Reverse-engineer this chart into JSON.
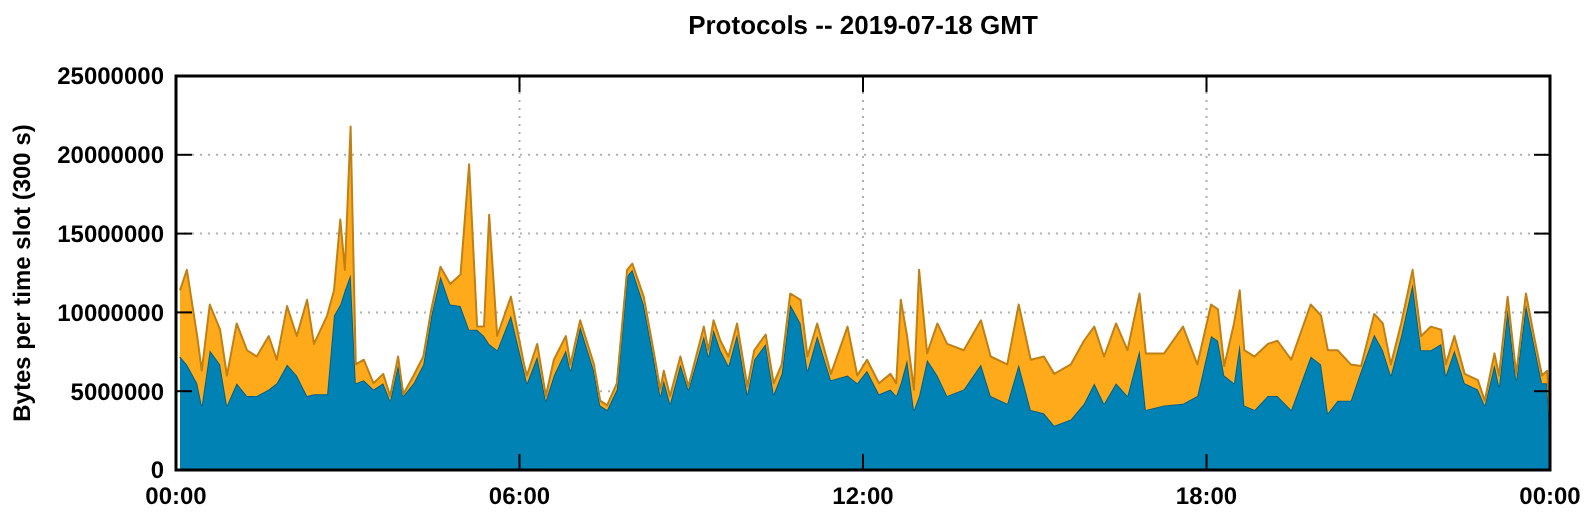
{
  "chart_data": {
    "type": "area",
    "stacked": true,
    "title": "Protocols -- 2019-07-18 GMT",
    "ylabel": "Bytes per time slot (300 s)",
    "x": [
      0.07,
      0.19,
      0.37,
      0.45,
      0.59,
      0.77,
      0.89,
      1.06,
      1.24,
      1.41,
      1.62,
      1.76,
      1.94,
      2.11,
      2.29,
      2.41,
      2.64,
      2.76,
      2.87,
      2.95,
      3.05,
      3.14,
      3.28,
      3.45,
      3.62,
      3.74,
      3.88,
      3.97,
      4.15,
      4.32,
      4.46,
      4.62,
      4.79,
      4.97,
      5.12,
      5.26,
      5.38,
      5.47,
      5.61,
      5.85,
      6.08,
      6.13,
      6.31,
      6.46,
      6.6,
      6.81,
      6.89,
      7.06,
      7.3,
      7.41,
      7.53,
      7.7,
      7.88,
      7.97,
      8.17,
      8.34,
      8.46,
      8.52,
      8.63,
      8.81,
      8.95,
      9.22,
      9.3,
      9.39,
      9.51,
      9.65,
      9.8,
      9.98,
      10.1,
      10.3,
      10.44,
      10.58,
      10.73,
      10.91,
      11.03,
      11.2,
      11.44,
      11.73,
      11.9,
      12.07,
      12.28,
      12.48,
      12.58,
      12.66,
      12.77,
      12.89,
      12.98,
      13.12,
      13.3,
      13.47,
      13.76,
      14.06,
      14.23,
      14.52,
      14.72,
      14.93,
      15.16,
      15.34,
      15.63,
      15.86,
      16.04,
      16.21,
      16.42,
      16.62,
      16.83,
      16.94,
      17.26,
      17.59,
      17.84,
      18.08,
      18.2,
      18.31,
      18.48,
      18.58,
      18.66,
      18.84,
      19.07,
      19.24,
      19.48,
      19.82,
      20.0,
      20.12,
      20.29,
      20.52,
      20.7,
      20.93,
      21.08,
      21.22,
      21.4,
      21.6,
      21.75,
      21.92,
      22.1,
      22.18,
      22.33,
      22.51,
      22.74,
      22.86,
      23.03,
      23.11,
      23.26,
      23.41,
      23.58,
      23.72,
      23.86,
      23.95,
      24.0
    ],
    "series": [
      {
        "color": "#0082b4",
        "values": [
          7200000,
          6700000,
          5500000,
          4100000,
          7600000,
          6700000,
          4100000,
          5500000,
          4700000,
          4700000,
          5100000,
          5500000,
          6700000,
          6000000,
          4700000,
          4800000,
          4800000,
          9800000,
          10500000,
          11400000,
          12400000,
          5500000,
          5700000,
          5100000,
          5500000,
          4400000,
          6700000,
          4700000,
          5500000,
          6700000,
          9800000,
          12300000,
          10500000,
          10400000,
          8900000,
          8900000,
          8500000,
          8000000,
          7600000,
          9800000,
          6300000,
          5500000,
          7200000,
          4400000,
          6000000,
          7600000,
          6300000,
          9100000,
          6300000,
          4100000,
          3800000,
          5100000,
          12300000,
          12700000,
          10500000,
          7200000,
          4700000,
          5700000,
          4200000,
          6700000,
          5100000,
          8500000,
          7200000,
          8900000,
          7600000,
          6600000,
          8600000,
          4800000,
          7000000,
          8000000,
          4800000,
          6100000,
          10500000,
          9300000,
          6300000,
          8500000,
          5700000,
          6000000,
          5500000,
          6300000,
          4800000,
          5100000,
          4700000,
          5500000,
          7000000,
          3800000,
          4700000,
          7000000,
          6000000,
          4700000,
          5100000,
          6700000,
          4700000,
          4200000,
          6700000,
          3800000,
          3600000,
          2800000,
          3200000,
          4200000,
          5500000,
          4200000,
          5500000,
          4700000,
          7600000,
          3800000,
          4100000,
          4200000,
          4700000,
          8500000,
          8200000,
          6000000,
          5500000,
          8000000,
          4100000,
          3800000,
          4700000,
          4700000,
          3800000,
          7200000,
          6700000,
          3600000,
          4400000,
          4400000,
          6300000,
          8600000,
          7600000,
          6000000,
          8500000,
          11800000,
          7600000,
          7600000,
          8000000,
          6000000,
          7600000,
          5500000,
          5100000,
          4100000,
          6700000,
          5300000,
          10200000,
          5700000,
          10500000,
          8000000,
          5500000,
          5500000,
          2500000
        ]
      },
      {
        "color": "#ffaa1a",
        "values": [
          4200000,
          6000000,
          3000000,
          2200000,
          2900000,
          2200000,
          1900000,
          3800000,
          2900000,
          2500000,
          3400000,
          1500000,
          3700000,
          2500000,
          6100000,
          3200000,
          5000000,
          1600000,
          5400000,
          1300000,
          9400000,
          1200000,
          1300000,
          400000,
          600000,
          300000,
          500000,
          100000,
          500000,
          500000,
          400000,
          600000,
          1300000,
          2000000,
          10500000,
          200000,
          600000,
          8200000,
          900000,
          1200000,
          400000,
          500000,
          800000,
          300000,
          1000000,
          900000,
          400000,
          400000,
          400000,
          300000,
          300000,
          400000,
          400000,
          400000,
          500000,
          400000,
          400000,
          600000,
          500000,
          500000,
          200000,
          600000,
          400000,
          600000,
          600000,
          600000,
          700000,
          500000,
          600000,
          600000,
          700000,
          600000,
          700000,
          1500000,
          900000,
          800000,
          400000,
          3100000,
          500000,
          700000,
          700000,
          1000000,
          800000,
          5300000,
          1500000,
          1300000,
          8000000,
          400000,
          3300000,
          3300000,
          2500000,
          2800000,
          2500000,
          2500000,
          3800000,
          3200000,
          3600000,
          3300000,
          3500000,
          4000000,
          3600000,
          3000000,
          3800000,
          2900000,
          3600000,
          3600000,
          3300000,
          4900000,
          2000000,
          2000000,
          2000000,
          600000,
          3800000,
          3400000,
          3500000,
          3400000,
          3300000,
          3500000,
          3200000,
          3300000,
          3100000,
          4000000,
          3200000,
          2300000,
          300000,
          1300000,
          1700000,
          700000,
          800000,
          900000,
          900000,
          1500000,
          900000,
          700000,
          900000,
          600000,
          600000,
          300000,
          700000,
          700000,
          800000,
          400000,
          700000,
          500000,
          500000,
          800000,
          900000
        ]
      }
    ],
    "xlim": [
      0,
      24
    ],
    "xticks": [
      {
        "value": 0,
        "label": "00:00"
      },
      {
        "value": 6,
        "label": "06:00"
      },
      {
        "value": 12,
        "label": "12:00"
      },
      {
        "value": 18,
        "label": "18:00"
      },
      {
        "value": 24,
        "label": "00:00"
      }
    ],
    "ylim": [
      0,
      25000000
    ],
    "yticks": [
      0,
      5000000,
      10000000,
      15000000,
      20000000,
      25000000
    ],
    "grid": true
  }
}
